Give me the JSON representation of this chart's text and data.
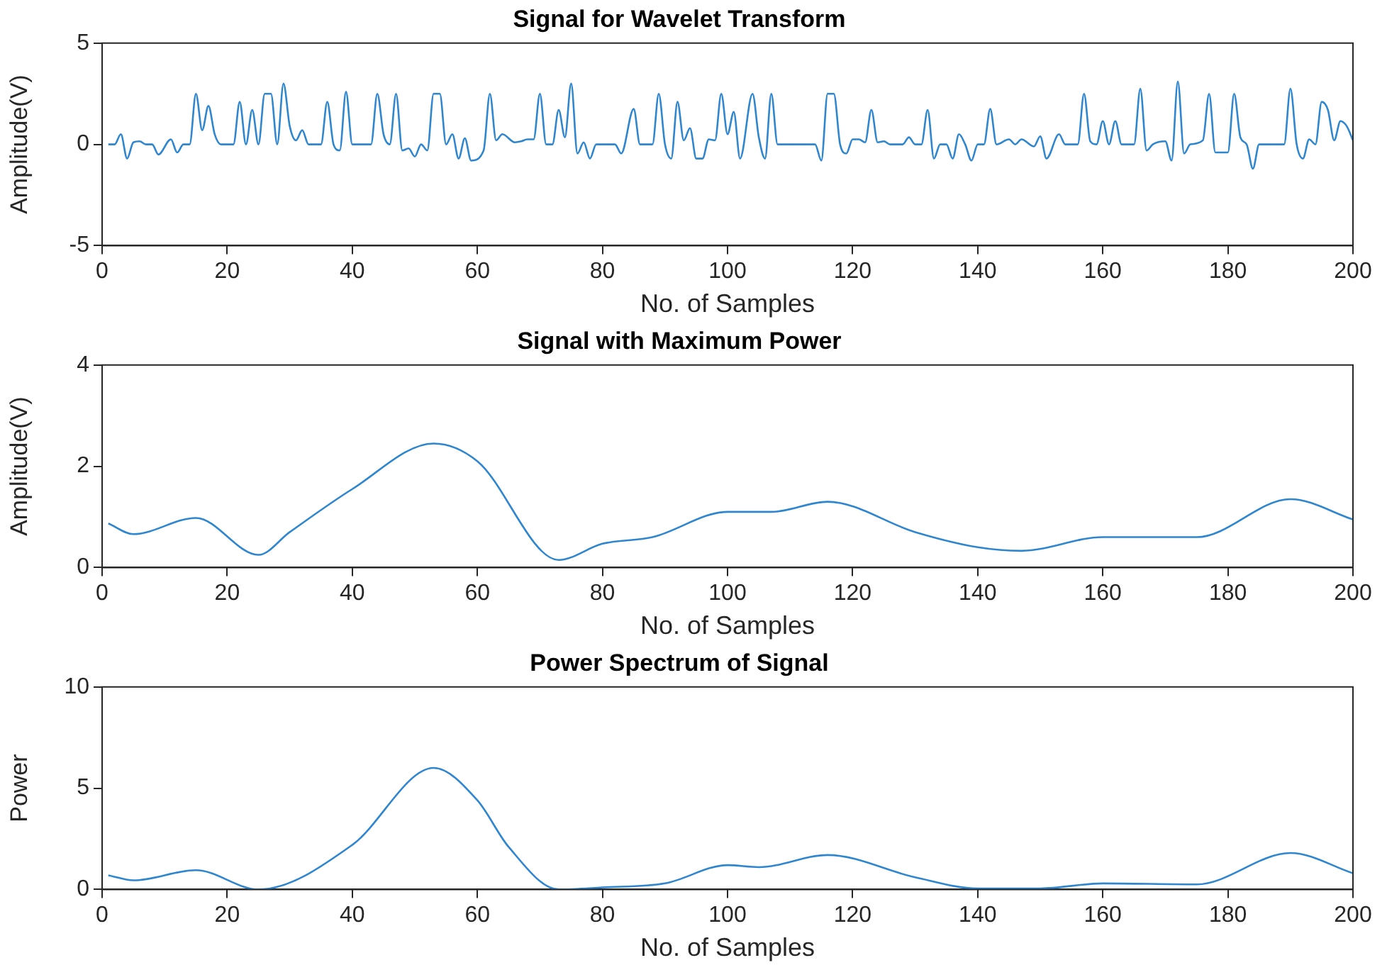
{
  "chart_data": [
    {
      "type": "line",
      "title": "Signal for Wavelet Transform",
      "xlabel": "No. of Samples",
      "ylabel": "Amplitude(V)",
      "xlim": [
        0,
        200
      ],
      "xticks": [
        0,
        20,
        40,
        60,
        80,
        100,
        120,
        140,
        160,
        180,
        200
      ],
      "ylim": [
        -5,
        5
      ],
      "yticks": [
        -5,
        0,
        5
      ],
      "grid": false,
      "series": [
        {
          "color": "#2f86d0",
          "x": [
            1,
            2,
            3,
            4,
            5,
            6,
            7,
            8,
            9,
            11,
            12,
            13,
            14,
            15,
            16,
            17,
            18,
            19,
            21,
            22,
            23,
            24,
            25,
            26,
            27,
            28,
            29,
            30,
            31,
            32,
            33,
            35,
            36,
            37,
            38,
            39,
            40,
            43,
            44,
            45,
            46,
            47,
            48,
            49,
            50,
            51,
            52,
            53,
            54,
            55,
            56,
            57,
            58,
            59,
            61,
            62,
            63,
            64,
            66,
            67,
            68,
            69,
            70,
            71,
            72,
            73,
            74,
            75,
            76,
            77,
            78,
            79,
            82,
            83,
            85,
            86,
            88,
            89,
            90,
            91,
            92,
            93,
            94,
            95,
            96,
            97,
            98,
            99,
            100,
            101,
            102,
            104,
            105,
            106,
            107,
            108,
            114,
            115,
            116,
            117,
            118,
            119,
            120,
            121,
            122,
            123,
            124,
            125,
            126,
            128,
            129,
            130,
            131,
            132,
            133,
            134,
            135,
            136,
            137,
            138,
            139,
            140,
            141,
            142,
            143,
            145,
            146,
            147,
            149,
            150,
            151,
            153,
            154,
            156,
            157,
            158,
            159,
            160,
            161,
            162,
            163,
            165,
            166,
            167,
            168,
            170,
            171,
            172,
            173,
            174,
            176,
            177,
            178,
            180,
            181,
            182,
            183,
            184,
            185,
            189,
            190,
            191,
            192,
            193,
            194,
            195,
            196,
            197,
            198,
            199,
            200
          ],
          "values": [
            0,
            0,
            0.5,
            -0.7,
            0.1,
            0.15,
            0,
            0,
            -0.5,
            0.25,
            -0.4,
            0,
            0,
            2.5,
            0.7,
            1.9,
            0.5,
            0,
            0,
            2.1,
            0,
            1.7,
            0,
            2.5,
            2.5,
            0,
            3,
            0.9,
            0.2,
            0.7,
            0,
            0,
            2.1,
            0,
            -0.3,
            2.6,
            0,
            0,
            2.5,
            0.5,
            0,
            2.5,
            -0.3,
            -0.2,
            -0.6,
            0,
            -0.3,
            2.5,
            2.5,
            0,
            0.5,
            -0.7,
            0.3,
            -0.8,
            -0.3,
            2.5,
            0.2,
            0.5,
            0.1,
            0.15,
            0.25,
            0.25,
            2.5,
            0,
            0,
            1.7,
            0.35,
            3,
            -0.45,
            0.1,
            -0.7,
            0,
            0,
            -0.45,
            1.75,
            0,
            0,
            2.5,
            0,
            -0.7,
            2.1,
            0.2,
            0.8,
            -0.7,
            -0.7,
            0.25,
            0.2,
            2.5,
            0.5,
            1.6,
            -0.7,
            2.5,
            0.35,
            -0.7,
            2.5,
            0,
            0,
            -0.8,
            2.5,
            2.5,
            0,
            -0.45,
            0.25,
            0.25,
            0.1,
            1.7,
            0.1,
            0.15,
            0,
            0,
            0.35,
            0,
            0,
            1.7,
            -0.7,
            0,
            0,
            -0.7,
            0.5,
            0,
            -0.8,
            0,
            0,
            1.75,
            0,
            0.25,
            0,
            0.25,
            -0.1,
            0.4,
            -0.7,
            0.5,
            0,
            0,
            2.5,
            0.15,
            0,
            1.15,
            0,
            1.15,
            0,
            0,
            2.75,
            -0.3,
            0,
            0.15,
            -0.8,
            3.1,
            -0.45,
            0,
            0.2,
            2.5,
            -0.4,
            -0.4,
            2.5,
            0.35,
            0,
            -1.2,
            0,
            0,
            2.75,
            0,
            -0.7,
            0.25,
            0,
            2.1,
            1.7,
            0.2,
            1.15,
            0.9,
            0.2
          ]
        }
      ]
    },
    {
      "type": "line",
      "title": "Signal with Maximum Power",
      "xlabel": "No. of Samples",
      "ylabel": "Amplitude(V)",
      "xlim": [
        0,
        200
      ],
      "xticks": [
        0,
        20,
        40,
        60,
        80,
        100,
        120,
        140,
        160,
        180,
        200
      ],
      "ylim": [
        0,
        4
      ],
      "yticks": [
        0,
        2,
        4
      ],
      "grid": false,
      "series": [
        {
          "color": "#2f86d0",
          "x": [
            1,
            5,
            15,
            25,
            30,
            40,
            53,
            60,
            73,
            80,
            88,
            100,
            107,
            116,
            130,
            140,
            147,
            160,
            175,
            190,
            200
          ],
          "values": [
            0.87,
            0.66,
            0.98,
            0.25,
            0.7,
            1.55,
            2.45,
            2.1,
            0.15,
            0.47,
            0.6,
            1.1,
            1.1,
            1.3,
            0.7,
            0.4,
            0.33,
            0.6,
            0.6,
            1.35,
            0.95
          ]
        }
      ]
    },
    {
      "type": "line",
      "title": "Power Spectrum of Signal",
      "xlabel": "No. of Samples",
      "ylabel": "Power",
      "xlim": [
        0,
        200
      ],
      "xticks": [
        0,
        20,
        40,
        60,
        80,
        100,
        120,
        140,
        160,
        180,
        200
      ],
      "ylim": [
        0,
        10
      ],
      "yticks": [
        0,
        5,
        10
      ],
      "grid": false,
      "series": [
        {
          "color": "#2f86d0",
          "x": [
            1,
            5,
            15,
            25,
            40,
            53,
            60,
            65,
            73,
            80,
            90,
            100,
            105,
            116,
            130,
            140,
            150,
            160,
            175,
            190,
            200
          ],
          "values": [
            0.7,
            0.45,
            0.95,
            0,
            2.2,
            6,
            4.4,
            2.1,
            0,
            0.1,
            0.3,
            1.2,
            1.1,
            1.7,
            0.6,
            0.05,
            0.05,
            0.3,
            0.25,
            1.8,
            0.8
          ]
        }
      ]
    }
  ]
}
